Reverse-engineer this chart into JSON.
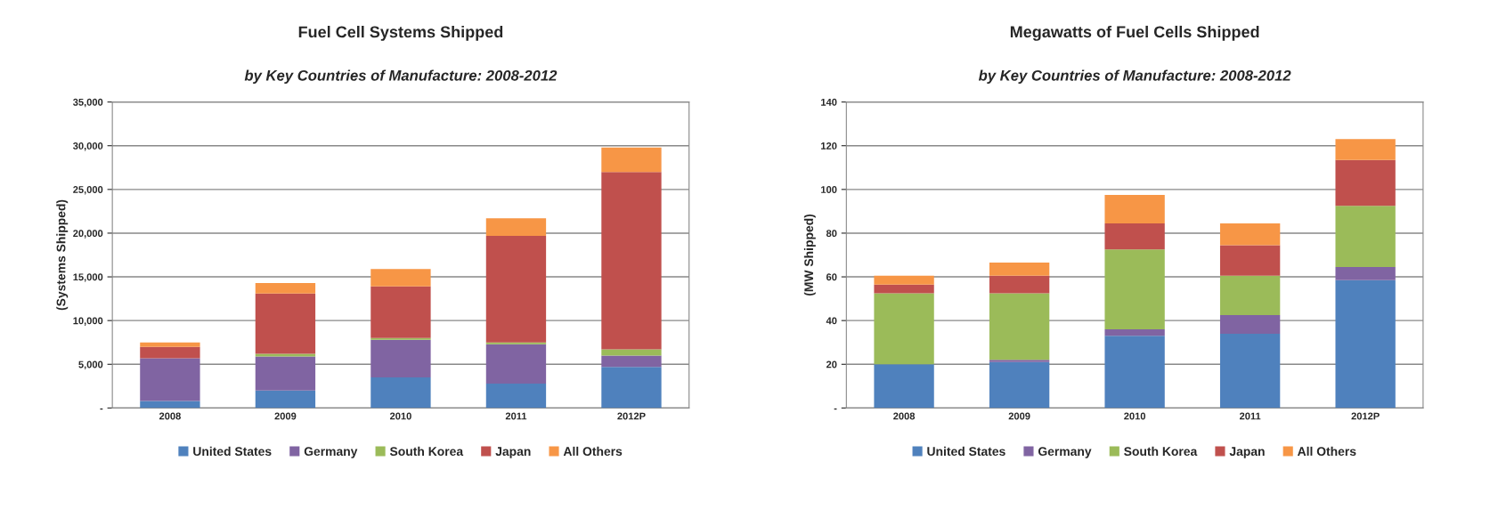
{
  "chart_data": [
    {
      "type": "bar",
      "stacked": true,
      "title": "Fuel Cell Systems Shipped",
      "subtitle": "by Key Countries of Manufacture: 2008-2012",
      "ylabel": "(Systems Shipped)",
      "categories": [
        "2008",
        "2009",
        "2010",
        "2011",
        "2012P"
      ],
      "series": [
        {
          "name": "United States",
          "color": "#4f81bd",
          "values": [
            800,
            2000,
            3500,
            2800,
            4700
          ]
        },
        {
          "name": "Germany",
          "color": "#8064a2",
          "values": [
            4900,
            3900,
            4300,
            4500,
            1300
          ]
        },
        {
          "name": "South Korea",
          "color": "#9bbb59",
          "values": [
            0,
            300,
            200,
            200,
            700
          ]
        },
        {
          "name": "Japan",
          "color": "#c0504d",
          "values": [
            1300,
            6900,
            5900,
            12200,
            20300
          ]
        },
        {
          "name": "All Others",
          "color": "#f79646",
          "values": [
            500,
            1200,
            2000,
            2000,
            2800
          ]
        }
      ],
      "ylim": [
        0,
        35000
      ],
      "yticks": [
        {
          "value": 0,
          "label": "-"
        },
        {
          "value": 5000,
          "label": "5,000"
        },
        {
          "value": 10000,
          "label": "10,000"
        },
        {
          "value": 15000,
          "label": "15,000"
        },
        {
          "value": 20000,
          "label": "20,000"
        },
        {
          "value": 25000,
          "label": "25,000"
        },
        {
          "value": 30000,
          "label": "30,000"
        },
        {
          "value": 35000,
          "label": "35,000"
        }
      ],
      "grid": "y",
      "legend": "bottom"
    },
    {
      "type": "bar",
      "stacked": true,
      "title": "Megawatts of Fuel Cells Shipped",
      "subtitle": "by Key Countries of Manufacture: 2008-2012",
      "ylabel": "(MW Shipped)",
      "categories": [
        "2008",
        "2009",
        "2010",
        "2011",
        "2012P"
      ],
      "series": [
        {
          "name": "United States",
          "color": "#4f81bd",
          "values": [
            20,
            21,
            33,
            34,
            58.5
          ]
        },
        {
          "name": "Germany",
          "color": "#8064a2",
          "values": [
            0,
            1,
            3,
            8.5,
            6
          ]
        },
        {
          "name": "South Korea",
          "color": "#9bbb59",
          "values": [
            32.5,
            30.5,
            36.5,
            18,
            28
          ]
        },
        {
          "name": "Japan",
          "color": "#c0504d",
          "values": [
            4,
            8,
            12,
            14,
            21
          ]
        },
        {
          "name": "All Others",
          "color": "#f79646",
          "values": [
            4,
            6,
            13,
            10,
            9.5
          ]
        }
      ],
      "ylim": [
        0,
        140
      ],
      "yticks": [
        {
          "value": 0,
          "label": "-"
        },
        20,
        40,
        60,
        80,
        100,
        120,
        140
      ],
      "grid": "y",
      "legend": "bottom"
    }
  ]
}
